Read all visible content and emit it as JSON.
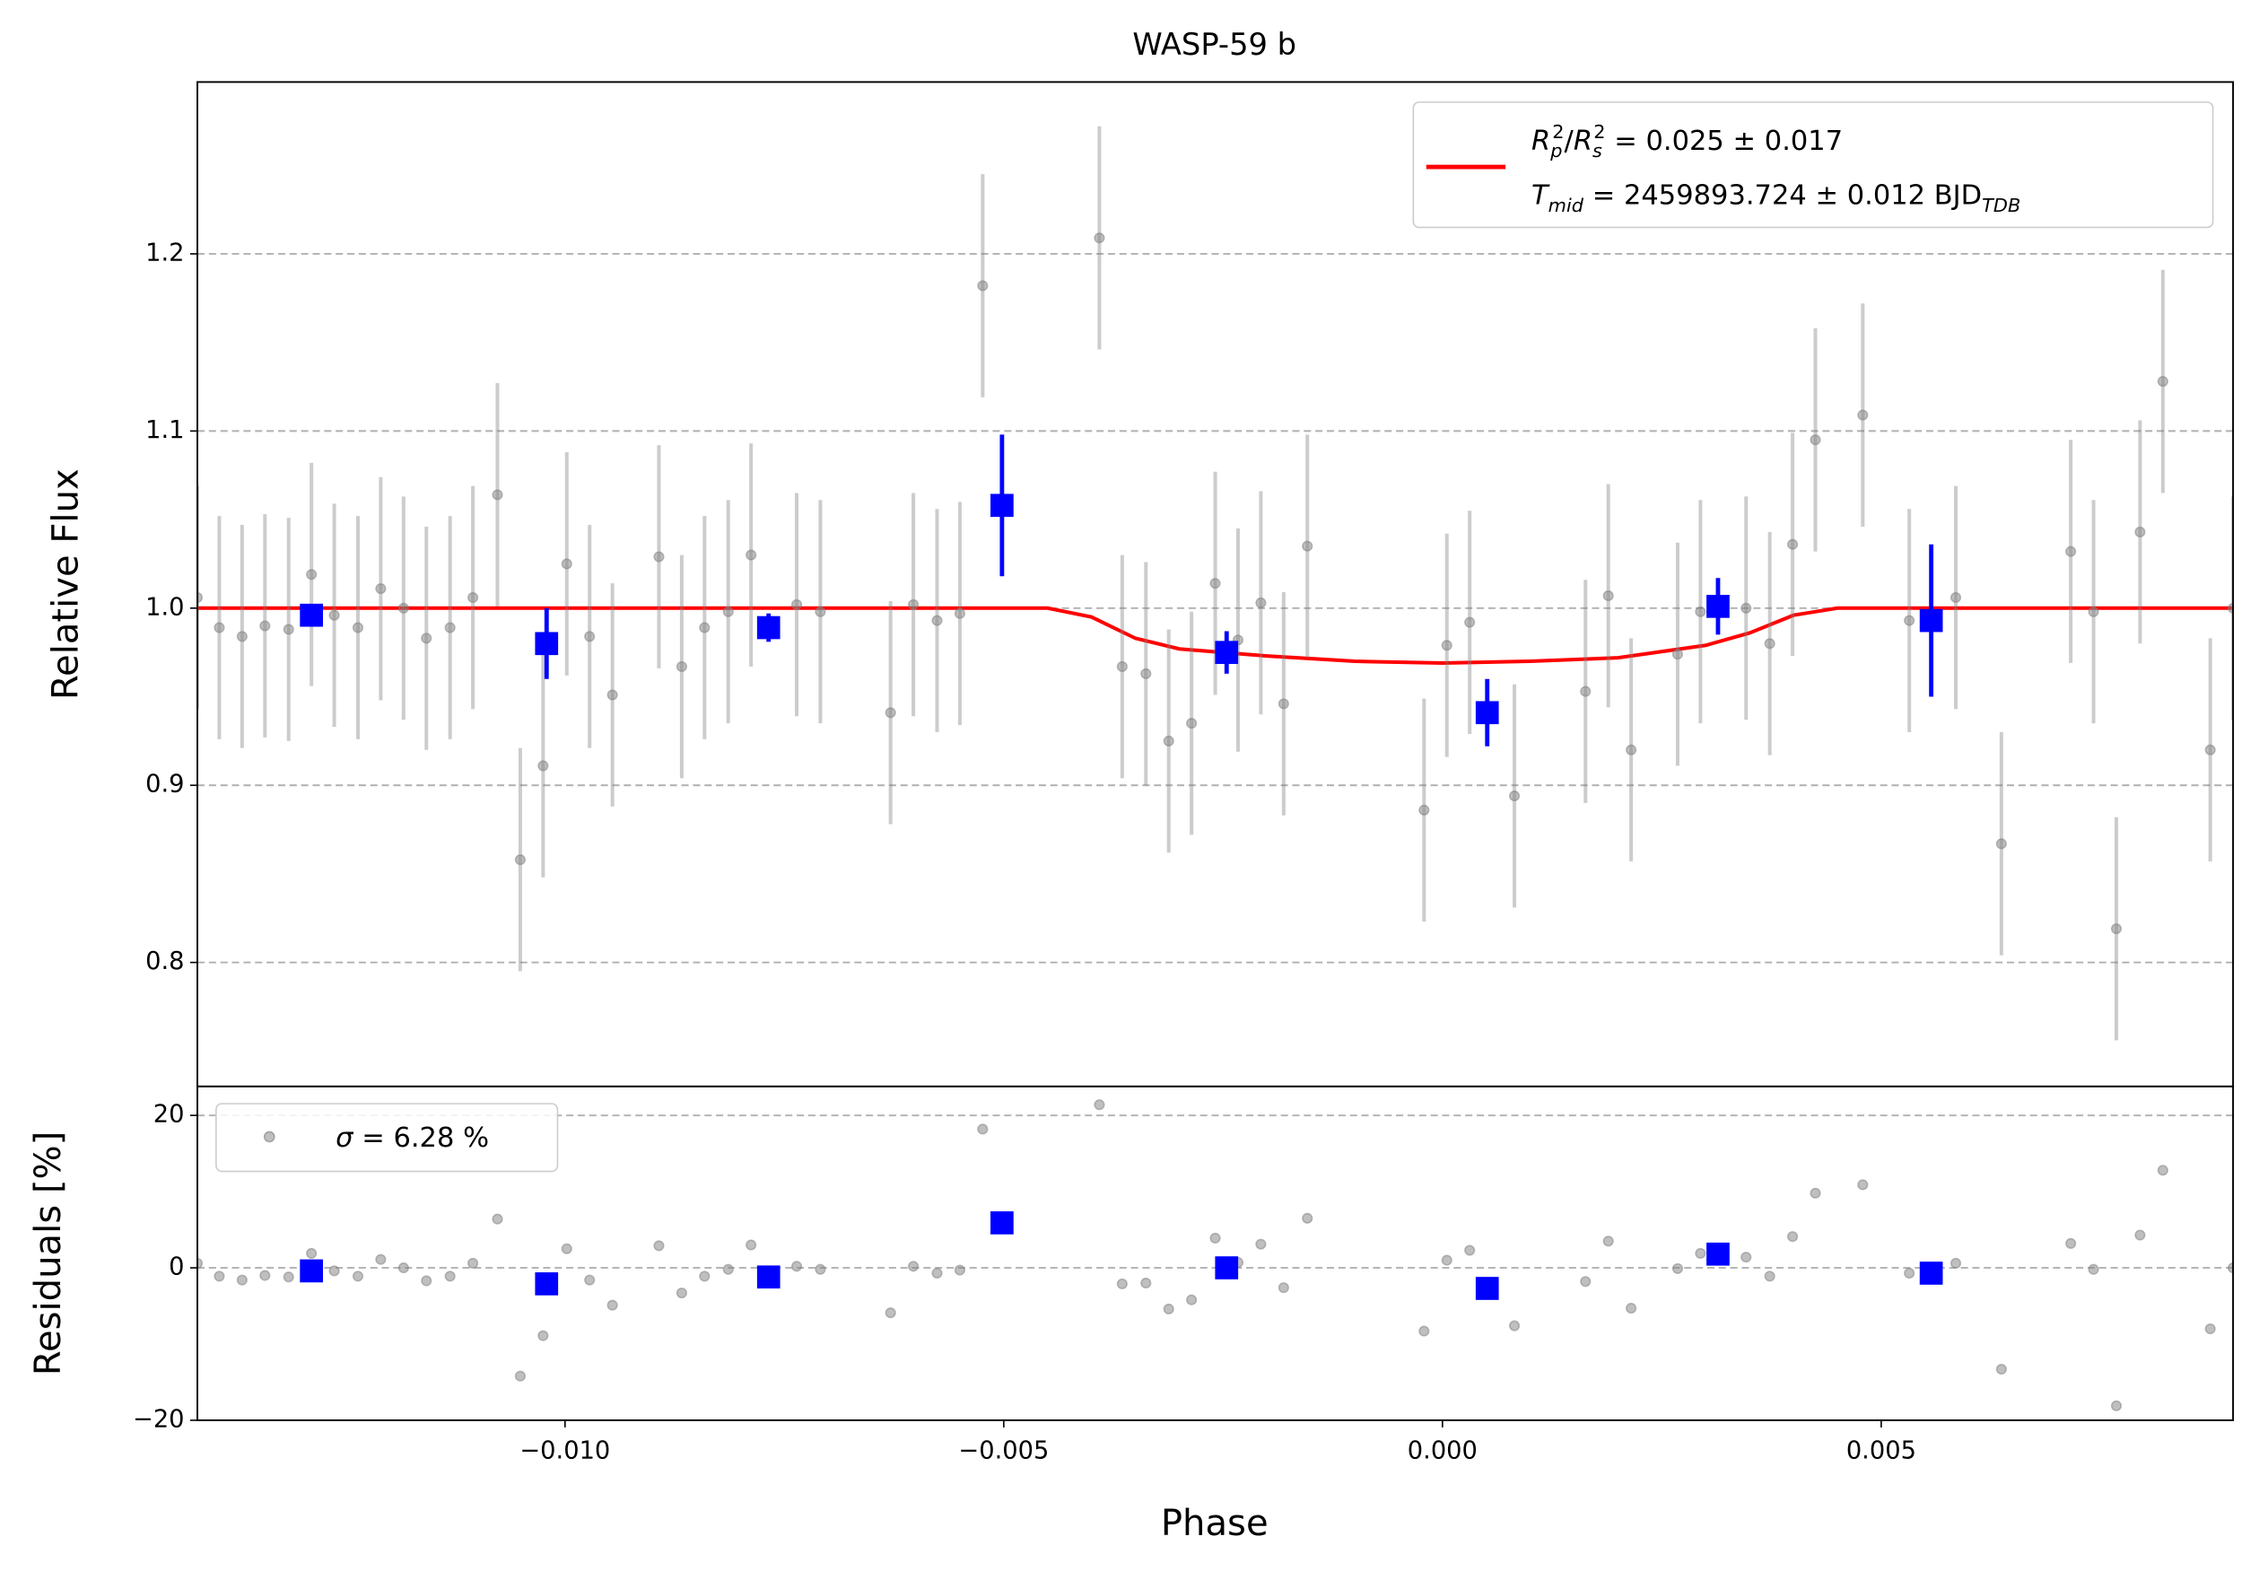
{
  "chart_data": [
    {
      "type": "scatter",
      "title": "WASP-59 b",
      "ylabel": "Relative Flux",
      "xlim": [
        -0.01419,
        0.00901
      ],
      "ylim": [
        0.73,
        1.297
      ],
      "yticks": [
        0.8,
        0.9,
        {
          "value": 1,
          "label": "1.0"
        },
        1.1,
        1.2
      ],
      "grid": true,
      "legend": "upper right",
      "series": [
        {
          "type": "line",
          "color": "#ff0000",
          "name": [
            [
              "R",
              "p",
              "2",
              "/",
              "R",
              "s",
              "2",
              " = 0.025 ± 0.017"
            ],
            [
              "T",
              "mid",
              " = 2459893.724 ± 0.012 BJD",
              "TDB"
            ]
          ],
          "x": [
            -0.01419,
            -0.0045,
            -0.004,
            -0.0035,
            -0.003,
            -0.002,
            -0.001,
            0.0,
            0.001,
            0.002,
            0.003,
            0.0035,
            0.004,
            0.0045,
            0.00901
          ],
          "values": [
            1,
            1,
            0.995,
            0.983,
            0.977,
            0.973,
            0.97,
            0.969,
            0.97,
            0.972,
            0.979,
            0.986,
            0.996,
            1,
            1
          ]
        },
        {
          "type": "errorbar",
          "color": "#808080",
          "x": [
            -0.01419,
            -0.01394,
            -0.01368,
            -0.01342,
            -0.01315,
            -0.01289,
            -0.01263,
            -0.01236,
            -0.0121,
            -0.01184,
            -0.01158,
            -0.01131,
            -0.01105,
            -0.01077,
            -0.01051,
            -0.01025,
            -0.00998,
            -0.00972,
            -0.00946,
            -0.00893,
            -0.00867,
            -0.00841,
            -0.00814,
            -0.00788,
            -0.00736,
            -0.00709,
            -0.00629,
            -0.00603,
            -0.00576,
            -0.0055,
            -0.00524,
            -0.00391,
            -0.00365,
            -0.00338,
            -0.00312,
            -0.00286,
            -0.00259,
            -0.00233,
            -0.00207,
            -0.00181,
            -0.00154,
            -0.00021,
            5e-05,
            0.00031,
            0.00082,
            0.00163,
            0.00189,
            0.00215,
            0.00268,
            0.00294,
            0.00346,
            0.00373,
            0.00399,
            0.00425,
            0.00479,
            0.00532,
            0.00585,
            0.00637,
            0.00716,
            0.00742,
            0.00768,
            0.00795,
            0.00821,
            0.00875,
            0.00901
          ],
          "values": [
            1.006,
            0.989,
            0.984,
            0.99,
            0.988,
            1.019,
            0.996,
            0.989,
            1.011,
            1.0,
            0.983,
            0.989,
            1.006,
            1.064,
            0.858,
            0.911,
            1.025,
            0.984,
            0.951,
            1.029,
            0.967,
            0.989,
            0.998,
            1.03,
            1.002,
            0.998,
            0.941,
            1.002,
            0.993,
            0.997,
            1.182,
            1.209,
            0.967,
            0.963,
            0.925,
            0.935,
            1.014,
            0.982,
            1.003,
            0.946,
            1.035,
            0.886,
            0.979,
            0.992,
            0.894,
            0.953,
            1.007,
            0.92,
            0.974,
            0.998,
            1.0,
            0.98,
            1.036,
            1.095,
            1.109,
            0.993,
            1.006,
            0.867,
            1.032,
            0.998,
            0.819,
            1.043,
            1.128,
            0.92,
            1.0
          ],
          "errors": [
            0.063,
            0.063,
            0.063,
            0.063,
            0.063,
            0.063,
            0.063,
            0.063,
            0.063,
            0.063,
            0.063,
            0.063,
            0.063,
            0.063,
            0.063,
            0.063,
            0.063,
            0.063,
            0.063,
            0.063,
            0.063,
            0.063,
            0.063,
            0.063,
            0.063,
            0.063,
            0.063,
            0.063,
            0.063,
            0.063,
            0.063,
            0.063,
            0.063,
            0.063,
            0.063,
            0.063,
            0.063,
            0.063,
            0.063,
            0.063,
            0.063,
            0.063,
            0.063,
            0.063,
            0.063,
            0.063,
            0.063,
            0.063,
            0.063,
            0.063,
            0.063,
            0.063,
            0.063,
            0.063,
            0.063,
            0.063,
            0.063,
            0.063,
            0.063,
            0.063,
            0.063,
            0.063,
            0.063,
            0.063,
            0.063
          ]
        },
        {
          "type": "binned",
          "color": "#0000ff",
          "x": [
            -0.01289,
            -0.01021,
            -0.00768,
            -0.00502,
            -0.00246,
            0.00051,
            0.00314,
            0.00557
          ],
          "values": [
            0.996,
            0.98,
            0.989,
            1.058,
            0.975,
            0.941,
            1.001,
            0.993
          ],
          "errors": [
            0.006,
            0.02,
            0.008,
            0.04,
            0.012,
            0.019,
            0.016,
            0.043
          ]
        }
      ]
    },
    {
      "type": "scatter",
      "xlabel": "Phase",
      "ylabel": "Residuals [%]",
      "xlim": [
        -0.01419,
        0.00901
      ],
      "ylim": [
        -20,
        23.8
      ],
      "xticks": [
        {
          "value": -0.01,
          "label": "−0.010"
        },
        {
          "value": -0.005,
          "label": "−0.005"
        },
        {
          "value": 0,
          "label": "0.000"
        },
        {
          "value": 0.005,
          "label": "0.005"
        }
      ],
      "yticks": [
        {
          "value": -20,
          "label": "−20"
        },
        0,
        20
      ],
      "grid": true,
      "legend": "upper left",
      "series": [
        {
          "type": "points",
          "color": "#808080",
          "name": [
            "σ",
            " = 6.28 %"
          ],
          "x": [
            -0.01419,
            -0.01394,
            -0.01368,
            -0.01342,
            -0.01315,
            -0.01289,
            -0.01263,
            -0.01236,
            -0.0121,
            -0.01184,
            -0.01158,
            -0.01131,
            -0.01105,
            -0.01077,
            -0.01051,
            -0.01025,
            -0.00998,
            -0.00972,
            -0.00946,
            -0.00893,
            -0.00867,
            -0.00841,
            -0.00814,
            -0.00788,
            -0.00736,
            -0.00709,
            -0.00629,
            -0.00603,
            -0.00576,
            -0.0055,
            -0.00524,
            -0.00391,
            -0.00365,
            -0.00338,
            -0.00312,
            -0.00286,
            -0.00259,
            -0.00233,
            -0.00207,
            -0.00181,
            -0.00154,
            -0.00021,
            5e-05,
            0.00031,
            0.00082,
            0.00163,
            0.00189,
            0.00215,
            0.00268,
            0.00294,
            0.00346,
            0.00373,
            0.00399,
            0.00425,
            0.00479,
            0.00532,
            0.00585,
            0.00637,
            0.00716,
            0.00742,
            0.00768,
            0.00795,
            0.00821,
            0.00875,
            0.00901
          ],
          "values": [
            0.6,
            -1.1,
            -1.6,
            -1.0,
            -1.2,
            1.9,
            -0.4,
            -1.1,
            1.1,
            0.0,
            -1.7,
            -1.1,
            0.6,
            6.4,
            -14.2,
            -8.9,
            2.5,
            -1.6,
            -4.9,
            2.9,
            -3.3,
            -1.1,
            -0.2,
            3.0,
            0.2,
            -0.2,
            -5.9,
            0.2,
            -0.7,
            -0.3,
            18.2,
            21.4,
            -2.1,
            -2.0,
            -5.4,
            -4.2,
            3.9,
            0.7,
            3.1,
            -2.6,
            6.5,
            -8.3,
            1.0,
            2.3,
            -7.6,
            -1.8,
            3.5,
            -5.3,
            -0.1,
            1.9,
            1.4,
            -1.1,
            4.1,
            9.8,
            10.9,
            -0.7,
            0.6,
            -13.3,
            3.2,
            -0.2,
            -18.1,
            4.3,
            12.8,
            -8.0,
            0.0
          ]
        },
        {
          "type": "binned",
          "color": "#0000ff",
          "x": [
            -0.01289,
            -0.01021,
            -0.00768,
            -0.00502,
            -0.00246,
            0.00051,
            0.00314,
            0.00557
          ],
          "values": [
            -0.4,
            -2.1,
            -1.2,
            5.9,
            0.0,
            -2.7,
            1.8,
            -0.7
          ]
        }
      ]
    }
  ]
}
